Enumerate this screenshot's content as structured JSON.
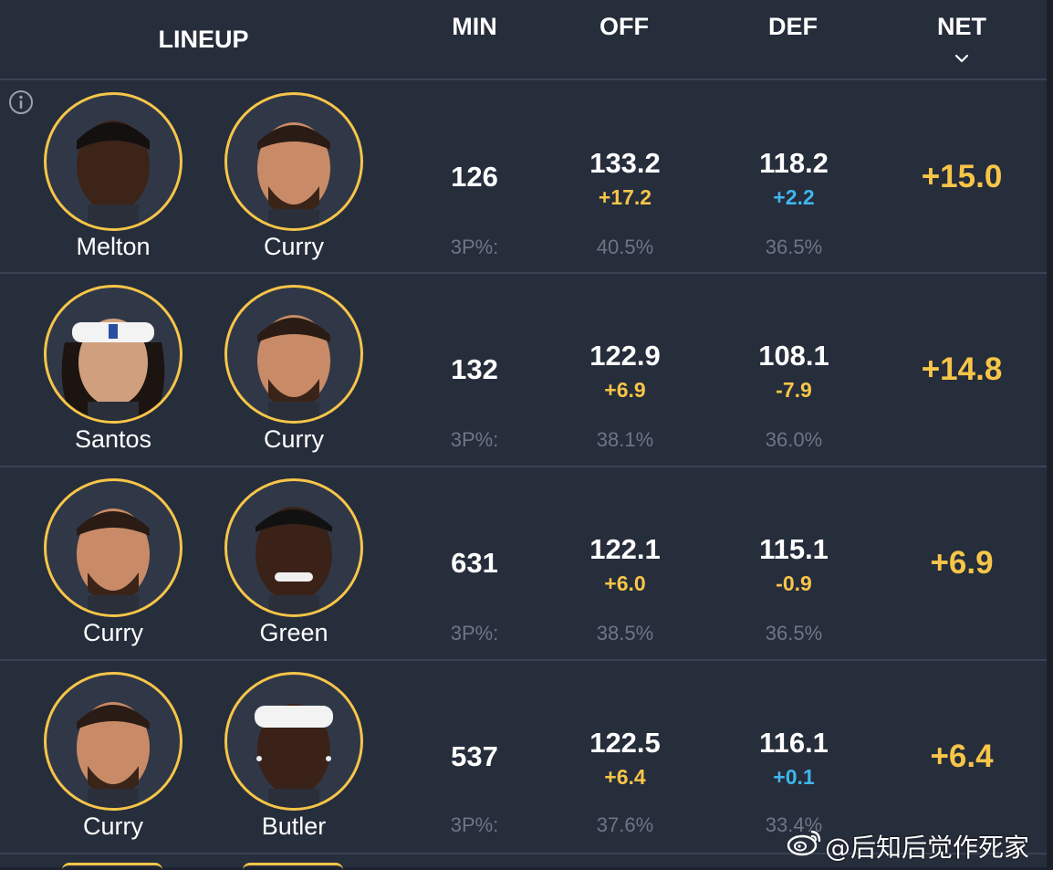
{
  "header": {
    "lineup": "LINEUP",
    "min": "MIN",
    "off": "OFF",
    "def": "DEF",
    "net": "NET",
    "sort_icon": "chevron-down-icon"
  },
  "colors": {
    "background": "#262d3b",
    "accent_gold": "#f7c548",
    "positive_blue": "#3fb6ee",
    "muted": "#6e7585"
  },
  "rows": [
    {
      "player1": "Melton",
      "player2": "Curry",
      "min": "126",
      "off": "133.2",
      "off_delta": "+17.2",
      "def": "118.2",
      "def_delta": "+2.2",
      "three_label": "3P%:",
      "off_3p": "40.5%",
      "def_3p": "36.5%",
      "net": "+15.0"
    },
    {
      "player1": "Santos",
      "player2": "Curry",
      "min": "132",
      "off": "122.9",
      "off_delta": "+6.9",
      "def": "108.1",
      "def_delta": "-7.9",
      "three_label": "3P%:",
      "off_3p": "38.1%",
      "def_3p": "36.0%",
      "net": "+14.8"
    },
    {
      "player1": "Curry",
      "player2": "Green",
      "min": "631",
      "off": "122.1",
      "off_delta": "+6.0",
      "def": "115.1",
      "def_delta": "-0.9",
      "three_label": "3P%:",
      "off_3p": "38.5%",
      "def_3p": "36.5%",
      "net": "+6.9"
    },
    {
      "player1": "Curry",
      "player2": "Butler",
      "min": "537",
      "off": "122.5",
      "off_delta": "+6.4",
      "def": "116.1",
      "def_delta": "+0.1",
      "three_label": "3P%:",
      "off_3p": "37.6%",
      "def_3p": "33.4%",
      "net": "+6.4"
    }
  ],
  "watermark": {
    "text": "@后知后觉作死家",
    "icon": "weibo-icon"
  }
}
